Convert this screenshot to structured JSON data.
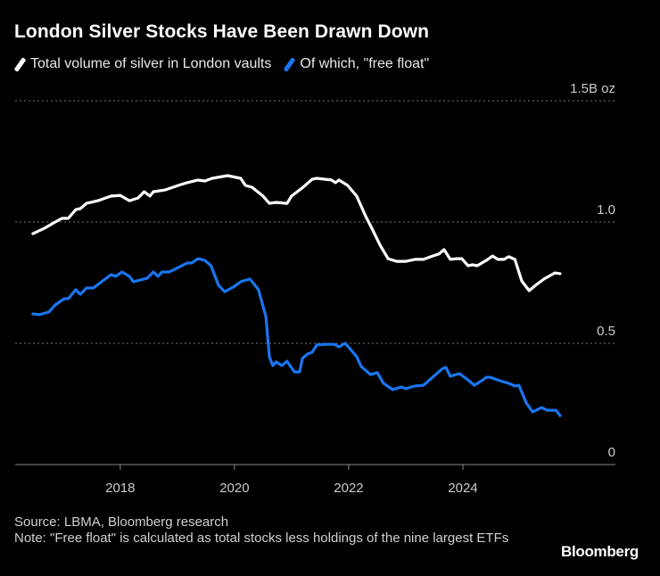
{
  "title": "London Silver Stocks Have Been Drawn Down",
  "source": "Source: LBMA, Bloomberg research",
  "note": "Note: \"Free float\" is calculated as total stocks less holdings of the nine largest ETFs",
  "logo": "Bloomberg",
  "colors": {
    "total": "#ffffff",
    "free_float": "#1a75f0",
    "grid": "#777777",
    "background": "#000000"
  },
  "chart_data": {
    "type": "line",
    "title": "London Silver Stocks Have Been Drawn Down",
    "xlim": [
      2016.16,
      2026.67
    ],
    "ylim": [
      0,
      1.5
    ],
    "x_ticks": [
      {
        "value": 2018,
        "label": "2018"
      },
      {
        "value": 2020,
        "label": "2020"
      },
      {
        "value": 2022,
        "label": "2022"
      },
      {
        "value": 2024,
        "label": "2024"
      }
    ],
    "y_ticks": [
      {
        "value": 0,
        "label": "0"
      },
      {
        "value": 0.5,
        "label": "0.5"
      },
      {
        "value": 1.0,
        "label": "1.0"
      },
      {
        "value": 1.5,
        "label": "1.5B oz"
      }
    ],
    "grid": "horizontal dotted",
    "legend": "top-left",
    "series": [
      {
        "name": "Total volume of silver in London vaults",
        "color": "#ffffff",
        "points": [
          [
            2016.47,
            0.952
          ],
          [
            2016.67,
            0.974
          ],
          [
            2016.83,
            0.996
          ],
          [
            2016.98,
            1.015
          ],
          [
            2017.09,
            1.015
          ],
          [
            2017.22,
            1.051
          ],
          [
            2017.3,
            1.055
          ],
          [
            2017.41,
            1.077
          ],
          [
            2017.61,
            1.088
          ],
          [
            2017.84,
            1.107
          ],
          [
            2018.0,
            1.11
          ],
          [
            2018.16,
            1.088
          ],
          [
            2018.31,
            1.099
          ],
          [
            2018.42,
            1.125
          ],
          [
            2018.52,
            1.107
          ],
          [
            2018.58,
            1.125
          ],
          [
            2018.78,
            1.132
          ],
          [
            2019.02,
            1.151
          ],
          [
            2019.17,
            1.162
          ],
          [
            2019.36,
            1.173
          ],
          [
            2019.48,
            1.169
          ],
          [
            2019.61,
            1.18
          ],
          [
            2019.88,
            1.191
          ],
          [
            2020.11,
            1.18
          ],
          [
            2020.19,
            1.151
          ],
          [
            2020.31,
            1.143
          ],
          [
            2020.5,
            1.107
          ],
          [
            2020.61,
            1.077
          ],
          [
            2020.73,
            1.081
          ],
          [
            2020.92,
            1.077
          ],
          [
            2021.0,
            1.107
          ],
          [
            2021.2,
            1.143
          ],
          [
            2021.36,
            1.176
          ],
          [
            2021.44,
            1.18
          ],
          [
            2021.7,
            1.173
          ],
          [
            2021.77,
            1.162
          ],
          [
            2021.83,
            1.173
          ],
          [
            2021.98,
            1.151
          ],
          [
            2022.14,
            1.107
          ],
          [
            2022.3,
            1.022
          ],
          [
            2022.42,
            0.967
          ],
          [
            2022.55,
            0.904
          ],
          [
            2022.69,
            0.849
          ],
          [
            2022.84,
            0.838
          ],
          [
            2023.0,
            0.838
          ],
          [
            2023.16,
            0.846
          ],
          [
            2023.31,
            0.846
          ],
          [
            2023.47,
            0.86
          ],
          [
            2023.58,
            0.868
          ],
          [
            2023.67,
            0.886
          ],
          [
            2023.78,
            0.846
          ],
          [
            2023.89,
            0.849
          ],
          [
            2023.98,
            0.849
          ],
          [
            2024.09,
            0.82
          ],
          [
            2024.17,
            0.824
          ],
          [
            2024.25,
            0.82
          ],
          [
            2024.41,
            0.842
          ],
          [
            2024.52,
            0.86
          ],
          [
            2024.61,
            0.846
          ],
          [
            2024.72,
            0.846
          ],
          [
            2024.8,
            0.857
          ],
          [
            2024.91,
            0.846
          ],
          [
            2025.03,
            0.757
          ],
          [
            2025.16,
            0.717
          ],
          [
            2025.27,
            0.739
          ],
          [
            2025.42,
            0.765
          ],
          [
            2025.61,
            0.79
          ],
          [
            2025.7,
            0.787
          ]
        ]
      },
      {
        "name": "Of which, \"free float\"",
        "color": "#1a75f0",
        "points": [
          [
            2016.47,
            0.621
          ],
          [
            2016.59,
            0.618
          ],
          [
            2016.75,
            0.629
          ],
          [
            2016.86,
            0.658
          ],
          [
            2017.02,
            0.684
          ],
          [
            2017.09,
            0.684
          ],
          [
            2017.22,
            0.721
          ],
          [
            2017.3,
            0.702
          ],
          [
            2017.41,
            0.728
          ],
          [
            2017.53,
            0.728
          ],
          [
            2017.69,
            0.757
          ],
          [
            2017.84,
            0.783
          ],
          [
            2017.92,
            0.776
          ],
          [
            2018.03,
            0.794
          ],
          [
            2018.16,
            0.776
          ],
          [
            2018.23,
            0.754
          ],
          [
            2018.47,
            0.768
          ],
          [
            2018.58,
            0.794
          ],
          [
            2018.66,
            0.776
          ],
          [
            2018.73,
            0.794
          ],
          [
            2018.86,
            0.794
          ],
          [
            2019.02,
            0.813
          ],
          [
            2019.17,
            0.831
          ],
          [
            2019.25,
            0.831
          ],
          [
            2019.36,
            0.849
          ],
          [
            2019.48,
            0.842
          ],
          [
            2019.59,
            0.82
          ],
          [
            2019.72,
            0.739
          ],
          [
            2019.83,
            0.713
          ],
          [
            2019.98,
            0.732
          ],
          [
            2020.11,
            0.754
          ],
          [
            2020.27,
            0.765
          ],
          [
            2020.42,
            0.721
          ],
          [
            2020.55,
            0.61
          ],
          [
            2020.61,
            0.445
          ],
          [
            2020.67,
            0.408
          ],
          [
            2020.73,
            0.423
          ],
          [
            2020.83,
            0.408
          ],
          [
            2020.92,
            0.426
          ],
          [
            2021.05,
            0.382
          ],
          [
            2021.14,
            0.382
          ],
          [
            2021.19,
            0.438
          ],
          [
            2021.28,
            0.456
          ],
          [
            2021.36,
            0.463
          ],
          [
            2021.44,
            0.493
          ],
          [
            2021.59,
            0.496
          ],
          [
            2021.75,
            0.496
          ],
          [
            2021.83,
            0.485
          ],
          [
            2021.94,
            0.5
          ],
          [
            2022.14,
            0.445
          ],
          [
            2022.22,
            0.404
          ],
          [
            2022.38,
            0.371
          ],
          [
            2022.5,
            0.379
          ],
          [
            2022.61,
            0.335
          ],
          [
            2022.77,
            0.309
          ],
          [
            2022.92,
            0.32
          ],
          [
            2023.0,
            0.313
          ],
          [
            2023.16,
            0.324
          ],
          [
            2023.31,
            0.327
          ],
          [
            2023.47,
            0.36
          ],
          [
            2023.63,
            0.393
          ],
          [
            2023.7,
            0.401
          ],
          [
            2023.78,
            0.364
          ],
          [
            2023.94,
            0.375
          ],
          [
            2024.09,
            0.349
          ],
          [
            2024.2,
            0.327
          ],
          [
            2024.33,
            0.346
          ],
          [
            2024.41,
            0.36
          ],
          [
            2024.48,
            0.36
          ],
          [
            2024.64,
            0.346
          ],
          [
            2024.8,
            0.335
          ],
          [
            2024.91,
            0.324
          ],
          [
            2024.98,
            0.327
          ],
          [
            2025.11,
            0.254
          ],
          [
            2025.22,
            0.217
          ],
          [
            2025.38,
            0.235
          ],
          [
            2025.47,
            0.224
          ],
          [
            2025.63,
            0.224
          ],
          [
            2025.7,
            0.202
          ]
        ]
      }
    ]
  }
}
